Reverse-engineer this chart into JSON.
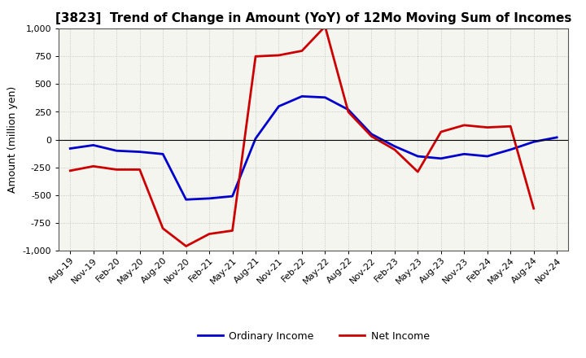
{
  "title": "[3823]  Trend of Change in Amount (YoY) of 12Mo Moving Sum of Incomes",
  "ylabel": "Amount (million yen)",
  "xlabels": [
    "Aug-19",
    "Nov-19",
    "Feb-20",
    "May-20",
    "Aug-20",
    "Nov-20",
    "Feb-21",
    "May-21",
    "Aug-21",
    "Nov-21",
    "Feb-22",
    "May-22",
    "Aug-22",
    "Nov-22",
    "Feb-23",
    "May-23",
    "Aug-23",
    "Nov-23",
    "Feb-24",
    "May-24",
    "Aug-24",
    "Nov-24"
  ],
  "ordinary_income": [
    -80,
    -50,
    -100,
    -110,
    -130,
    -540,
    -530,
    -510,
    10,
    300,
    390,
    380,
    270,
    50,
    -60,
    -150,
    -170,
    -130,
    -150,
    -90,
    -20,
    20
  ],
  "net_income": [
    -280,
    -240,
    -270,
    -270,
    -800,
    -960,
    -850,
    -820,
    750,
    760,
    800,
    1020,
    250,
    30,
    -90,
    -290,
    70,
    130,
    110,
    120,
    -620,
    null
  ],
  "ordinary_color": "#0000cc",
  "net_color": "#cc0000",
  "ylim": [
    -1000,
    1000
  ],
  "yticks": [
    -1000,
    -750,
    -500,
    -250,
    0,
    250,
    500,
    750,
    1000
  ],
  "bg_color": "#ffffff",
  "plot_bg_color": "#f5f5f0",
  "grid_color": "#bbbbbb",
  "legend_ordinary": "Ordinary Income",
  "legend_net": "Net Income",
  "title_fontsize": 11,
  "axis_fontsize": 8,
  "ylabel_fontsize": 9,
  "linewidth": 2.0
}
